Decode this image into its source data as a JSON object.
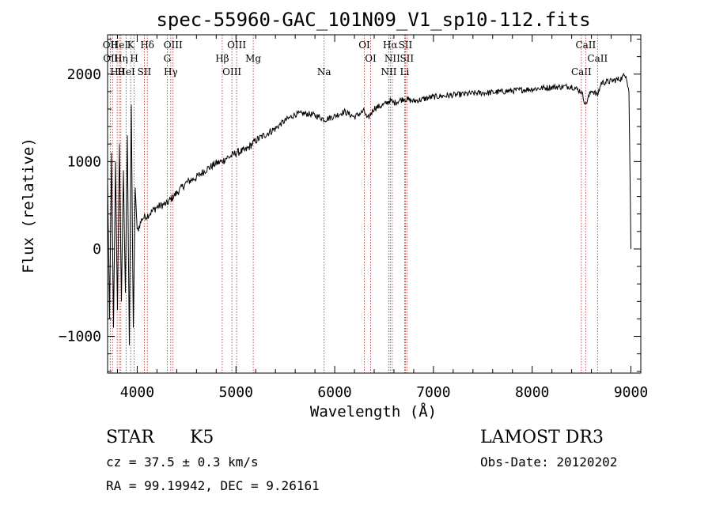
{
  "chart_data": {
    "type": "line",
    "title": "spec-55960-GAC_101N09_V1_sp10-112.fits",
    "xlabel": "Wavelength (Å)",
    "ylabel": "Flux (relative)",
    "xlim": [
      3700,
      9100
    ],
    "ylim": [
      -1420,
      2450
    ],
    "x_ticks": [
      4000,
      5000,
      6000,
      7000,
      8000,
      9000
    ],
    "x_tick_labels": [
      "4000",
      "5000",
      "6000",
      "7000",
      "8000",
      "9000"
    ],
    "y_ticks": [
      -1000,
      0,
      1000,
      2000
    ],
    "y_tick_labels": [
      "−1000",
      "0",
      "1000",
      "2000"
    ],
    "series": [
      {
        "name": "flux",
        "x": [
          3700,
          3720,
          3740,
          3760,
          3780,
          3800,
          3820,
          3840,
          3860,
          3880,
          3900,
          3920,
          3940,
          3960,
          3980,
          4000,
          4050,
          4100,
          4150,
          4200,
          4300,
          4400,
          4500,
          4600,
          4700,
          4800,
          4860,
          4900,
          4950,
          5000,
          5100,
          5200,
          5300,
          5400,
          5500,
          5600,
          5700,
          5800,
          5900,
          6000,
          6100,
          6200,
          6300,
          6330,
          6400,
          6500,
          6563,
          6600,
          6700,
          6800,
          7000,
          7200,
          7400,
          7600,
          7800,
          8000,
          8200,
          8400,
          8498,
          8542,
          8600,
          8662,
          8700,
          8800,
          8900,
          8950,
          8980,
          9000
        ],
        "values": [
          800,
          -800,
          1100,
          -900,
          1000,
          -700,
          1200,
          -600,
          900,
          -500,
          1300,
          -1100,
          1650,
          -900,
          700,
          200,
          350,
          380,
          430,
          480,
          520,
          640,
          760,
          820,
          910,
          980,
          1000,
          1040,
          1060,
          1100,
          1130,
          1240,
          1310,
          1380,
          1470,
          1540,
          1550,
          1530,
          1480,
          1520,
          1570,
          1510,
          1580,
          1480,
          1610,
          1650,
          1700,
          1670,
          1720,
          1690,
          1740,
          1760,
          1780,
          1790,
          1810,
          1830,
          1850,
          1860,
          1800,
          1650,
          1820,
          1760,
          1900,
          1920,
          1950,
          2000,
          1800,
          0
        ]
      }
    ],
    "line_markers": [
      {
        "wl": 3727,
        "label": "OII"
      },
      {
        "wl": 3750,
        "label": "OIII"
      },
      {
        "wl": 3797,
        "label": "Hθ"
      },
      {
        "wl": 3820,
        "label": "HeI"
      },
      {
        "wl": 3835,
        "label": "Hη"
      },
      {
        "wl": 3889,
        "label": "HeI"
      },
      {
        "wl": 3934,
        "label": "K"
      },
      {
        "wl": 3969,
        "label": "H"
      },
      {
        "wl": 4072,
        "label": "SII"
      },
      {
        "wl": 4102,
        "label": "Hδ"
      },
      {
        "wl": 4304,
        "label": "G"
      },
      {
        "wl": 4340,
        "label": "Hγ"
      },
      {
        "wl": 4363,
        "label": "OIII"
      },
      {
        "wl": 4861,
        "label": "Hβ"
      },
      {
        "wl": 4959,
        "label": "OIII"
      },
      {
        "wl": 5007,
        "label": "OIII"
      },
      {
        "wl": 5175,
        "label": "Mg"
      },
      {
        "wl": 5893,
        "label": "Na"
      },
      {
        "wl": 6300,
        "label": "OI"
      },
      {
        "wl": 6364,
        "label": "OI"
      },
      {
        "wl": 6548,
        "label": "NII"
      },
      {
        "wl": 6563,
        "label": "Hα"
      },
      {
        "wl": 6583,
        "label": "NII"
      },
      {
        "wl": 6708,
        "label": "Li"
      },
      {
        "wl": 6716,
        "label": "SII"
      },
      {
        "wl": 6731,
        "label": "SII"
      },
      {
        "wl": 8498,
        "label": "CaII"
      },
      {
        "wl": 8542,
        "label": "CaII"
      },
      {
        "wl": 8662,
        "label": "CaII"
      }
    ]
  },
  "info": {
    "object_class": "STAR",
    "subclass": "K5",
    "survey": "LAMOST DR3",
    "cz": "cz = 37.5 ± 0.3 km/s",
    "obs_date": "Obs-Date: 20120202",
    "coords": "RA =  99.19942, DEC =   9.26161"
  }
}
